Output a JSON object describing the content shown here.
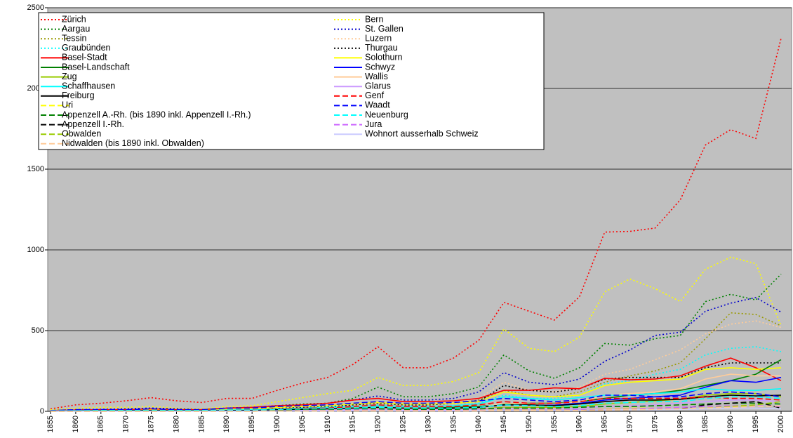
{
  "chart_data": {
    "type": "line",
    "categories": [
      "1855",
      "1860",
      "1865",
      "1870",
      "1875",
      "1880",
      "1885",
      "1890",
      "1895",
      "1900",
      "1905",
      "1910",
      "1915",
      "1920",
      "1925",
      "1930",
      "1935",
      "1940",
      "1945",
      "1950",
      "1955",
      "1960",
      "1965",
      "1970",
      "1975",
      "1980",
      "1985",
      "1990",
      "1995",
      "2000"
    ],
    "ylim": [
      0,
      2500
    ],
    "yticks": [
      0,
      500,
      1000,
      1500,
      2000,
      2500
    ],
    "grid": true,
    "background": "#c0c0c0",
    "series": [
      {
        "name": "Zürich",
        "color": "#ff0000",
        "style": "dotted",
        "values": [
          15,
          40,
          50,
          65,
          85,
          65,
          55,
          80,
          80,
          130,
          175,
          210,
          290,
          400,
          270,
          270,
          330,
          440,
          675,
          620,
          565,
          710,
          1110,
          1115,
          1135,
          1310,
          1650,
          1745,
          1690,
          2310
        ]
      },
      {
        "name": "Bern",
        "color": "#ffff00",
        "style": "dotted",
        "values": [
          10,
          20,
          25,
          25,
          30,
          20,
          15,
          30,
          35,
          60,
          85,
          110,
          130,
          210,
          160,
          160,
          185,
          240,
          510,
          390,
          370,
          460,
          740,
          820,
          760,
          680,
          880,
          955,
          915,
          530
        ]
      },
      {
        "name": "Aargau",
        "color": "#008000",
        "style": "dotted",
        "values": [
          5,
          10,
          12,
          15,
          20,
          15,
          10,
          20,
          25,
          35,
          45,
          50,
          80,
          150,
          90,
          90,
          110,
          150,
          350,
          250,
          205,
          270,
          420,
          410,
          450,
          470,
          680,
          725,
          690,
          850
        ]
      },
      {
        "name": "St. Gallen",
        "color": "#0000cc",
        "style": "dotted",
        "values": [
          5,
          10,
          12,
          15,
          20,
          15,
          10,
          20,
          25,
          35,
          40,
          50,
          70,
          95,
          70,
          70,
          80,
          120,
          240,
          180,
          165,
          200,
          310,
          380,
          470,
          490,
          620,
          670,
          705,
          615
        ]
      },
      {
        "name": "Tessin",
        "color": "#999900",
        "style": "dotted",
        "values": [
          2,
          5,
          5,
          5,
          8,
          5,
          5,
          10,
          10,
          20,
          25,
          30,
          40,
          50,
          40,
          40,
          50,
          70,
          130,
          100,
          90,
          120,
          180,
          220,
          250,
          300,
          450,
          610,
          600,
          530
        ]
      },
      {
        "name": "Luzern",
        "color": "#ffcc99",
        "style": "dotted",
        "values": [
          3,
          5,
          8,
          8,
          10,
          8,
          5,
          15,
          15,
          25,
          30,
          35,
          45,
          60,
          45,
          45,
          55,
          80,
          180,
          130,
          120,
          150,
          230,
          260,
          320,
          380,
          480,
          540,
          560,
          520
        ]
      },
      {
        "name": "Graubünden",
        "color": "#00ffff",
        "style": "dotted",
        "values": [
          2,
          5,
          5,
          5,
          5,
          5,
          5,
          8,
          10,
          15,
          20,
          25,
          30,
          40,
          30,
          30,
          35,
          50,
          100,
          80,
          80,
          100,
          170,
          190,
          230,
          260,
          350,
          390,
          400,
          370
        ]
      },
      {
        "name": "Thurgau",
        "color": "#000000",
        "style": "dotted",
        "values": [
          2,
          5,
          5,
          5,
          8,
          5,
          5,
          10,
          10,
          20,
          25,
          30,
          40,
          50,
          40,
          40,
          50,
          60,
          160,
          130,
          120,
          140,
          200,
          210,
          210,
          210,
          270,
          300,
          300,
          300
        ]
      },
      {
        "name": "Basel-Stadt",
        "color": "#ff0000",
        "style": "solid",
        "values": [
          5,
          8,
          10,
          10,
          15,
          10,
          10,
          20,
          25,
          35,
          40,
          50,
          70,
          80,
          60,
          60,
          65,
          80,
          130,
          130,
          145,
          140,
          205,
          195,
          200,
          220,
          280,
          330,
          270,
          190
        ]
      },
      {
        "name": "Solothurn",
        "color": "#ffff00",
        "style": "solid",
        "values": [
          2,
          5,
          5,
          5,
          8,
          5,
          5,
          10,
          15,
          25,
          30,
          35,
          45,
          55,
          45,
          45,
          50,
          60,
          120,
          100,
          90,
          100,
          160,
          180,
          190,
          200,
          260,
          270,
          260,
          270
        ]
      },
      {
        "name": "Basel-Landschaft",
        "color": "#008000",
        "style": "solid",
        "values": [
          1,
          2,
          3,
          3,
          5,
          3,
          3,
          5,
          5,
          10,
          15,
          15,
          20,
          25,
          20,
          20,
          25,
          30,
          45,
          50,
          50,
          60,
          80,
          100,
          110,
          130,
          160,
          190,
          230,
          320
        ]
      },
      {
        "name": "Schwyz",
        "color": "#0000ff",
        "style": "solid",
        "values": [
          1,
          2,
          2,
          2,
          3,
          2,
          2,
          5,
          5,
          8,
          10,
          10,
          15,
          20,
          15,
          15,
          20,
          25,
          40,
          40,
          40,
          50,
          70,
          80,
          90,
          100,
          150,
          190,
          180,
          210
        ]
      },
      {
        "name": "Zug",
        "color": "#99cc00",
        "style": "solid",
        "values": [
          1,
          1,
          2,
          2,
          2,
          2,
          2,
          3,
          3,
          5,
          5,
          8,
          10,
          12,
          10,
          10,
          12,
          15,
          25,
          25,
          25,
          30,
          45,
          55,
          65,
          75,
          100,
          110,
          110,
          90
        ]
      },
      {
        "name": "Wallis",
        "color": "#ffcc99",
        "style": "solid",
        "values": [
          1,
          2,
          2,
          2,
          3,
          2,
          2,
          5,
          5,
          8,
          10,
          12,
          15,
          20,
          15,
          15,
          20,
          25,
          50,
          45,
          45,
          60,
          100,
          110,
          120,
          140,
          200,
          230,
          220,
          220
        ]
      },
      {
        "name": "Schaffhausen",
        "color": "#00ffff",
        "style": "solid",
        "values": [
          2,
          5,
          5,
          5,
          5,
          5,
          5,
          8,
          10,
          15,
          20,
          25,
          30,
          35,
          30,
          30,
          35,
          45,
          90,
          80,
          70,
          85,
          100,
          100,
          110,
          120,
          140,
          130,
          130,
          140
        ]
      },
      {
        "name": "Glarus",
        "color": "#cc99ff",
        "style": "solid",
        "values": [
          1,
          2,
          2,
          2,
          3,
          2,
          2,
          3,
          3,
          5,
          8,
          8,
          10,
          12,
          10,
          10,
          10,
          12,
          20,
          18,
          18,
          20,
          30,
          35,
          40,
          50,
          60,
          70,
          70,
          60
        ]
      },
      {
        "name": "Freiburg",
        "color": "#000000",
        "style": "solid",
        "values": [
          1,
          2,
          3,
          3,
          5,
          3,
          3,
          5,
          5,
          10,
          12,
          15,
          20,
          25,
          20,
          20,
          20,
          25,
          40,
          40,
          35,
          45,
          60,
          70,
          70,
          75,
          90,
          100,
          95,
          100
        ]
      },
      {
        "name": "Genf",
        "color": "#ff0000",
        "style": "dashed",
        "values": [
          2,
          3,
          5,
          5,
          5,
          5,
          5,
          8,
          10,
          15,
          20,
          20,
          30,
          40,
          30,
          30,
          30,
          40,
          60,
          50,
          50,
          60,
          80,
          80,
          80,
          80,
          90,
          80,
          80,
          70
        ]
      },
      {
        "name": "Uri",
        "color": "#ffff00",
        "style": "dashed",
        "values": [
          0,
          1,
          1,
          1,
          1,
          1,
          1,
          2,
          2,
          3,
          3,
          4,
          5,
          5,
          5,
          5,
          5,
          5,
          10,
          10,
          10,
          10,
          15,
          20,
          20,
          25,
          30,
          35,
          35,
          30
        ]
      },
      {
        "name": "Waadt",
        "color": "#0000ff",
        "style": "dashed",
        "values": [
          5,
          10,
          10,
          10,
          15,
          10,
          10,
          20,
          20,
          30,
          35,
          40,
          50,
          60,
          50,
          50,
          55,
          65,
          80,
          70,
          60,
          70,
          100,
          100,
          90,
          90,
          110,
          120,
          110,
          90
        ]
      },
      {
        "name": "Appenzell A.-Rh. (bis 1890 inkl. Appenzell I.-Rh.)",
        "color": "#008000",
        "style": "dashed",
        "values": [
          2,
          3,
          5,
          5,
          5,
          5,
          5,
          8,
          8,
          10,
          12,
          12,
          15,
          15,
          12,
          12,
          12,
          15,
          20,
          20,
          20,
          25,
          30,
          30,
          35,
          40,
          45,
          50,
          50,
          45
        ]
      },
      {
        "name": "Neuenburg",
        "color": "#00ffff",
        "style": "dashed",
        "values": [
          2,
          3,
          5,
          5,
          5,
          5,
          5,
          8,
          8,
          12,
          15,
          15,
          20,
          25,
          20,
          20,
          20,
          25,
          40,
          35,
          30,
          35,
          50,
          55,
          60,
          60,
          80,
          90,
          90,
          80
        ]
      },
      {
        "name": "Appenzell I.-Rh.",
        "color": "#000000",
        "style": "dashed",
        "values": [
          0,
          1,
          1,
          1,
          1,
          1,
          1,
          1,
          1,
          2,
          2,
          2,
          3,
          3,
          3,
          3,
          3,
          3,
          5,
          5,
          5,
          5,
          8,
          10,
          12,
          15,
          40,
          50,
          60,
          20
        ]
      },
      {
        "name": "Jura",
        "color": "#cc66ff",
        "style": "dashed",
        "values": [
          1,
          1,
          1,
          1,
          1,
          1,
          1,
          2,
          2,
          3,
          3,
          4,
          5,
          5,
          5,
          5,
          5,
          5,
          8,
          8,
          8,
          10,
          12,
          15,
          20,
          25,
          30,
          35,
          35,
          30
        ]
      },
      {
        "name": "Obwalden",
        "color": "#99cc00",
        "style": "dashed",
        "values": [
          0,
          1,
          1,
          1,
          1,
          1,
          1,
          1,
          1,
          2,
          2,
          2,
          3,
          3,
          3,
          3,
          3,
          3,
          5,
          5,
          5,
          5,
          8,
          10,
          12,
          15,
          20,
          30,
          40,
          60
        ]
      },
      {
        "name": "Wohnort ausserhalb Schweiz",
        "color": "#ccccff",
        "style": "solid",
        "values": [
          1,
          1,
          1,
          1,
          1,
          1,
          1,
          1,
          1,
          2,
          2,
          2,
          3,
          3,
          3,
          3,
          3,
          3,
          5,
          5,
          5,
          5,
          8,
          10,
          10,
          12,
          15,
          20,
          20,
          15
        ]
      },
      {
        "name": "Nidwalden (bis 1890 inkl. Obwalden)",
        "color": "#ffcc99",
        "style": "dashed",
        "values": [
          0,
          1,
          1,
          1,
          1,
          1,
          1,
          1,
          1,
          2,
          2,
          2,
          3,
          3,
          3,
          3,
          3,
          3,
          5,
          5,
          5,
          5,
          8,
          10,
          12,
          15,
          20,
          25,
          30,
          35
        ]
      }
    ]
  }
}
